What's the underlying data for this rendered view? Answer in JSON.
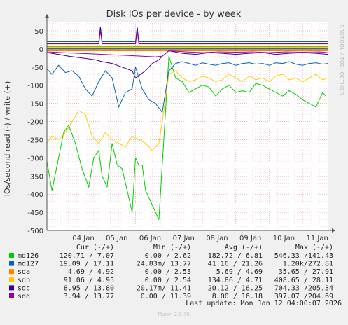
{
  "title": "Disk IOs per device - by week",
  "watermark": "RRDTOOL / TOBI OETIKER",
  "footer": "Munin 2.0.76",
  "last_update": "Last update: Mon Jan 12 04:00:07 2026",
  "legend_headers": [
    "Cur (-/+)",
    "Min (-/+)",
    "Avg (-/+)",
    "Max (-/+)"
  ],
  "legend_rows": [
    {
      "name": "md126",
      "color": "#00cc00",
      "cur": "120.71 /  7.07",
      "min": "0.00 /  2.62",
      "avg": "182.72 /  6.81",
      "max": "546.33 /141.43"
    },
    {
      "name": "md127",
      "color": "#0066b3",
      "cur": "19.09 / 17.11",
      "min": "24.83m/ 13.77",
      "avg": "41.16 / 21.26",
      "max": "1.20k/272.81"
    },
    {
      "name": "sda",
      "color": "#ff8000",
      "cur": "4.69 /  4.92",
      "min": "0.00 /  2.53",
      "avg": "5.69 /  4.69",
      "max": "35.65 / 27.91"
    },
    {
      "name": "sdb",
      "color": "#ffcc00",
      "cur": "91.06 /  4.95",
      "min": "0.00 /  2.54",
      "avg": "134.86 /  4.71",
      "max": "408.65 / 28.11"
    },
    {
      "name": "sdc",
      "color": "#330099",
      "cur": "8.95 / 13.80",
      "min": "20.17m/ 11.41",
      "avg": "20.12 / 16.25",
      "max": "704.33 /205.34"
    },
    {
      "name": "sdd",
      "color": "#990099",
      "cur": "3.94 / 13.77",
      "min": "0.00 / 11.39",
      "avg": "8.00 / 16.18",
      "max": "397.07 /204.69"
    }
  ],
  "chart_data": {
    "type": "line",
    "title": "Disk IOs per device - by week",
    "ylabel": "IOs/second read (-) / write (+)",
    "xlabel": "",
    "ylim": [
      -500,
      75
    ],
    "yticks": [
      50,
      0,
      -50,
      -100,
      -150,
      -200,
      -250,
      -300,
      -350,
      -400,
      -450,
      -500
    ],
    "ytick_labels": [
      "50",
      "0",
      "-50",
      "-100",
      "-150",
      "-200",
      "-250",
      "-300",
      "-350",
      "-400",
      "-450",
      "-500"
    ],
    "xlim": [
      3.35,
      11.75
    ],
    "xticks": [
      4,
      5,
      6,
      7,
      8,
      9,
      10,
      11
    ],
    "xtick_labels": [
      "04 Jan",
      "05 Jan",
      "06 Jan",
      "07 Jan",
      "08 Jan",
      "09 Jan",
      "10 Jan",
      "11 Jan"
    ],
    "grid": true,
    "series": [
      {
        "name": "md126",
        "color": "#00cc00",
        "read_x": [
          3.35,
          3.5,
          3.7,
          3.85,
          4.0,
          4.2,
          4.4,
          4.6,
          4.75,
          4.9,
          5.0,
          5.15,
          5.3,
          5.45,
          5.6,
          5.75,
          5.9,
          6.0,
          6.1,
          6.2,
          6.3,
          6.45,
          6.6,
          6.7,
          6.8,
          7.0,
          7.2,
          7.4,
          7.6,
          7.8,
          8.0,
          8.2,
          8.4,
          8.6,
          8.8,
          9.0,
          9.2,
          9.4,
          9.6,
          9.8,
          10.0,
          10.2,
          10.4,
          10.6,
          10.8,
          11.0,
          11.2,
          11.4,
          11.6,
          11.7
        ],
        "read_y": [
          -310,
          -390,
          -300,
          -230,
          -210,
          -260,
          -330,
          -380,
          -300,
          -280,
          -350,
          -380,
          -260,
          -320,
          -330,
          -390,
          -450,
          -300,
          -320,
          -320,
          -390,
          -420,
          -450,
          -470,
          -320,
          -20,
          -80,
          -90,
          -120,
          -110,
          -100,
          -105,
          -130,
          -110,
          -100,
          -120,
          -115,
          -120,
          -95,
          -100,
          -110,
          -120,
          -130,
          -115,
          -125,
          -140,
          -150,
          -160,
          -120,
          -130
        ],
        "write_x": [
          3.35,
          11.75
        ],
        "write_y": [
          7,
          7
        ]
      },
      {
        "name": "md127",
        "color": "#0066b3",
        "read_x": [
          3.35,
          3.5,
          3.7,
          3.9,
          4.1,
          4.3,
          4.5,
          4.7,
          4.9,
          5.1,
          5.3,
          5.5,
          5.7,
          5.9,
          6.0,
          6.2,
          6.4,
          6.6,
          6.8,
          7.0,
          7.2,
          7.4,
          7.6,
          7.8,
          8.0,
          8.2,
          8.4,
          8.6,
          8.8,
          9.0,
          9.2,
          9.4,
          9.6,
          9.8,
          10.0,
          10.2,
          10.4,
          10.6,
          10.8,
          11.0,
          11.2,
          11.4,
          11.6,
          11.75
        ],
        "read_y": [
          -55,
          -70,
          -45,
          -65,
          -60,
          -75,
          -110,
          -130,
          -90,
          -60,
          -80,
          -160,
          -120,
          -110,
          -50,
          -110,
          -140,
          -150,
          -175,
          -60,
          -40,
          -35,
          -40,
          -45,
          -38,
          -42,
          -45,
          -40,
          -38,
          -45,
          -40,
          -38,
          -42,
          -40,
          -45,
          -38,
          -40,
          -35,
          -42,
          -45,
          -40,
          -38,
          -42,
          -40
        ],
        "write_x": [
          3.35,
          4.9,
          4.95,
          5.0,
          6.0,
          6.05,
          6.1,
          11.75
        ],
        "write_y": [
          20,
          20,
          60,
          20,
          20,
          60,
          20,
          20
        ]
      },
      {
        "name": "sda",
        "color": "#ff8000",
        "read_x": [
          3.35,
          11.75
        ],
        "read_y": [
          -5,
          -5
        ],
        "write_x": [
          3.35,
          11.75
        ],
        "write_y": [
          5,
          5
        ]
      },
      {
        "name": "sdb",
        "color": "#ffcc00",
        "read_x": [
          3.35,
          3.5,
          3.7,
          3.9,
          4.1,
          4.3,
          4.5,
          4.7,
          4.9,
          5.1,
          5.3,
          5.5,
          5.7,
          5.9,
          6.1,
          6.3,
          6.5,
          6.7,
          6.8,
          7.0,
          7.2,
          7.4,
          7.6,
          7.8,
          8.0,
          8.2,
          8.4,
          8.6,
          8.8,
          9.0,
          9.2,
          9.4,
          9.6,
          9.8,
          10.0,
          10.2,
          10.4,
          10.6,
          10.8,
          11.0,
          11.2,
          11.4,
          11.6,
          11.75
        ],
        "read_y": [
          -260,
          -240,
          -250,
          -230,
          -200,
          -170,
          -180,
          -240,
          -260,
          -230,
          -250,
          -260,
          -270,
          -240,
          -250,
          -260,
          -280,
          -260,
          -200,
          -70,
          -60,
          -80,
          -90,
          -85,
          -75,
          -80,
          -90,
          -85,
          -70,
          -80,
          -90,
          -75,
          -85,
          -80,
          -90,
          -75,
          -70,
          -85,
          -80,
          -90,
          -80,
          -70,
          -85,
          -80
        ],
        "write_x": [
          3.35,
          11.75
        ],
        "write_y": [
          5,
          5
        ]
      },
      {
        "name": "sdc",
        "color": "#330099",
        "read_x": [
          3.35,
          3.7,
          4.0,
          4.4,
          4.8,
          5.0,
          5.3,
          5.6,
          5.9,
          6.0,
          6.3,
          6.5,
          6.7,
          6.8,
          7.0,
          7.4,
          7.8,
          8.2,
          8.6,
          9.0,
          9.4,
          9.8,
          10.2,
          10.6,
          11.0,
          11.4,
          11.75
        ],
        "read_y": [
          -10,
          -15,
          -20,
          -25,
          -30,
          -35,
          -40,
          -50,
          -60,
          -80,
          -60,
          -40,
          -30,
          -20,
          -5,
          -12,
          -15,
          -10,
          -12,
          -15,
          -12,
          -10,
          -15,
          -12,
          -10,
          -12,
          -15
        ],
        "write_x": [
          3.35,
          4.9,
          4.95,
          5.0,
          6.0,
          6.05,
          6.1,
          11.75
        ],
        "write_y": [
          15,
          15,
          60,
          15,
          15,
          60,
          15,
          15
        ]
      },
      {
        "name": "sdd",
        "color": "#990099",
        "read_x": [
          3.35,
          3.8,
          4.3,
          4.8,
          5.3,
          5.8,
          6.2,
          6.6,
          6.8,
          7.0,
          7.5,
          8.0,
          8.5,
          9.0,
          9.5,
          10.0,
          10.5,
          11.0,
          11.5,
          11.75
        ],
        "read_y": [
          -8,
          -10,
          -12,
          -14,
          -16,
          -18,
          -20,
          -22,
          -20,
          -5,
          -8,
          -10,
          -8,
          -9,
          -8,
          -10,
          -8,
          -9,
          -8,
          -10
        ],
        "write_x": [
          3.35,
          4.9,
          4.95,
          5.0,
          6.0,
          6.05,
          6.1,
          11.75
        ],
        "write_y": [
          14,
          14,
          50,
          14,
          14,
          50,
          14,
          14
        ]
      }
    ]
  }
}
